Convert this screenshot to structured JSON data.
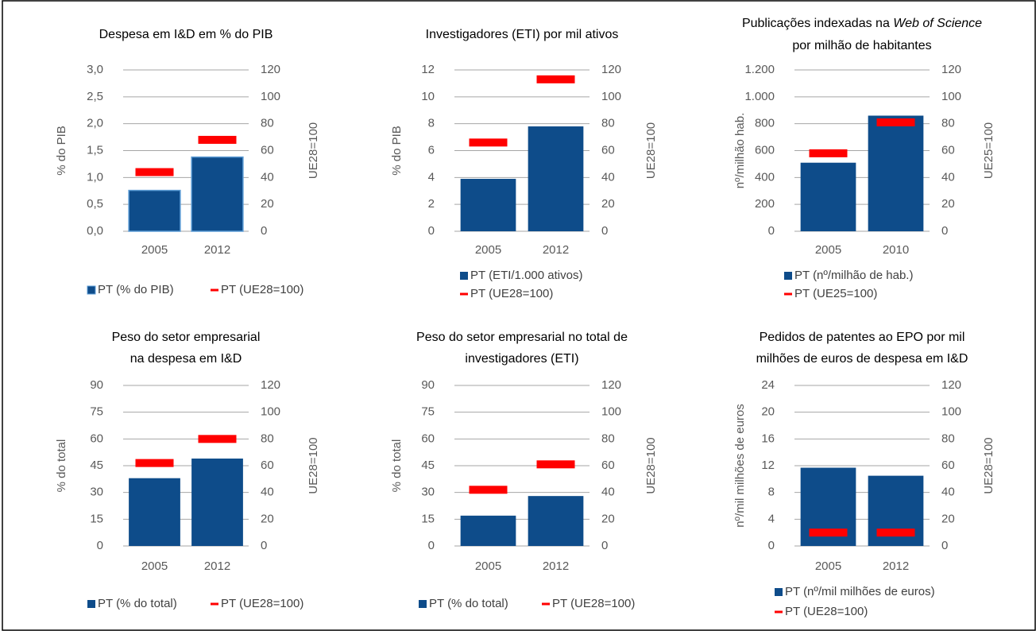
{
  "chart_data": [
    {
      "type": "bar",
      "title": [
        "Despesa em I&D em % do PIB"
      ],
      "categories": [
        "2005",
        "2012"
      ],
      "ylabel": "% do PIB",
      "y2label": "UE28=100",
      "ylim": [
        0,
        3
      ],
      "yticks": [
        {
          "value": 0,
          "label": "0,0"
        },
        {
          "value": 0.5,
          "label": "0,5"
        },
        {
          "value": 1,
          "label": "1,0"
        },
        {
          "value": 1.5,
          "label": "1,5"
        },
        {
          "value": 2,
          "label": "2,0"
        },
        {
          "value": 2.5,
          "label": "2,5"
        },
        {
          "value": 3,
          "label": "3,0"
        }
      ],
      "y2lim": [
        0,
        120
      ],
      "y2ticks": [
        0,
        20,
        40,
        60,
        80,
        100,
        120
      ],
      "grid": true,
      "series": [
        {
          "name": "PT (% do PIB)",
          "color": "#0e4c8a",
          "values": [
            0.76,
            1.38
          ]
        },
        {
          "name": "PT (UE28=100)",
          "color": "#ff0000",
          "values": [
            44,
            68
          ],
          "axis": "y2"
        }
      ]
    },
    {
      "type": "bar",
      "title": [
        "Investigadores (ETI) por mil ativos"
      ],
      "categories": [
        "2005",
        "2012"
      ],
      "ylabel": "% do PIB",
      "y2label": "UE28=100",
      "ylim": [
        0,
        12
      ],
      "yticks": [
        0,
        2,
        4,
        6,
        8,
        10,
        12
      ],
      "y2lim": [
        0,
        120
      ],
      "y2ticks": [
        0,
        20,
        40,
        60,
        80,
        100,
        120
      ],
      "grid": true,
      "series": [
        {
          "name": "PT (ETI/1.000 ativos)",
          "color": "#0e4c8a",
          "values": [
            3.9,
            7.8
          ]
        },
        {
          "name": "PT (UE28=100)",
          "color": "#ff0000",
          "values": [
            66,
            113
          ],
          "axis": "y2"
        }
      ]
    },
    {
      "type": "bar",
      "title": [
        [
          {
            "text": "Publicações indexadas na "
          },
          {
            "text": "Web of Science",
            "italic": true
          }
        ],
        "por milhão de habitantes"
      ],
      "categories": [
        "2005",
        "2010"
      ],
      "ylabel": "nº/milhão hab.",
      "y2label": "UE25=100",
      "ylim": [
        0,
        1200
      ],
      "yticks": [
        0,
        200,
        400,
        600,
        800,
        {
          "value": 1000,
          "label": "1.000"
        },
        {
          "value": 1200,
          "label": "1.200"
        }
      ],
      "y2lim": [
        0,
        120
      ],
      "y2ticks": [
        0,
        20,
        40,
        60,
        80,
        100,
        120
      ],
      "grid": true,
      "series": [
        {
          "name": "PT (nº/milhão de hab.)",
          "color": "#0e4c8a",
          "values": [
            510,
            860
          ]
        },
        {
          "name": "PT (UE25=100)",
          "color": "#ff0000",
          "values": [
            58,
            81
          ],
          "axis": "y2"
        }
      ]
    },
    {
      "type": "bar",
      "title": [
        "Peso do setor empresarial",
        "na despesa em I&D"
      ],
      "categories": [
        "2005",
        "2012"
      ],
      "ylabel": "% do total",
      "y2label": "UE28=100",
      "ylim": [
        0,
        90
      ],
      "yticks": [
        0,
        15,
        30,
        45,
        60,
        75,
        90
      ],
      "y2lim": [
        0,
        120
      ],
      "y2ticks": [
        0,
        20,
        40,
        60,
        80,
        100,
        120
      ],
      "grid": true,
      "series": [
        {
          "name": "PT (% do total)",
          "color": "#0e4c8a",
          "values": [
            38,
            49
          ]
        },
        {
          "name": "PT (UE28=100)",
          "color": "#ff0000",
          "values": [
            62,
            80
          ],
          "axis": "y2"
        }
      ]
    },
    {
      "type": "bar",
      "title": [
        "Peso do setor empresarial no total de",
        "investigadores (ETI)"
      ],
      "categories": [
        "2005",
        "2012"
      ],
      "ylabel": "% do total",
      "y2label": "UE28=100",
      "ylim": [
        0,
        90
      ],
      "yticks": [
        0,
        15,
        30,
        45,
        60,
        75,
        90
      ],
      "y2lim": [
        0,
        120
      ],
      "y2ticks": [
        0,
        20,
        40,
        60,
        80,
        100,
        120
      ],
      "grid": true,
      "series": [
        {
          "name": "PT (% do total)",
          "color": "#0e4c8a",
          "values": [
            17,
            28
          ]
        },
        {
          "name": "PT (UE28=100)",
          "color": "#ff0000",
          "values": [
            42,
            61
          ],
          "axis": "y2"
        }
      ]
    },
    {
      "type": "bar",
      "title": [
        "Pedidos de patentes ao EPO por mil",
        "milhões de euros de despesa em I&D"
      ],
      "categories": [
        "2005",
        "2012"
      ],
      "ylabel": "nº/mil milhões de euros",
      "y2label": "UE28=100",
      "ylim": [
        0,
        24
      ],
      "yticks": [
        0,
        4,
        8,
        12,
        16,
        20,
        24
      ],
      "y2lim": [
        0,
        120
      ],
      "y2ticks": [
        0,
        20,
        40,
        60,
        80,
        100,
        120
      ],
      "grid": true,
      "series": [
        {
          "name": "PT (nº/mil milhões de euros)",
          "color": "#0e4c8a",
          "values": [
            11.7,
            10.5
          ]
        },
        {
          "name": "PT (UE28=100)",
          "color": "#ff0000",
          "values": [
            10,
            10
          ],
          "axis": "y2"
        }
      ]
    }
  ]
}
